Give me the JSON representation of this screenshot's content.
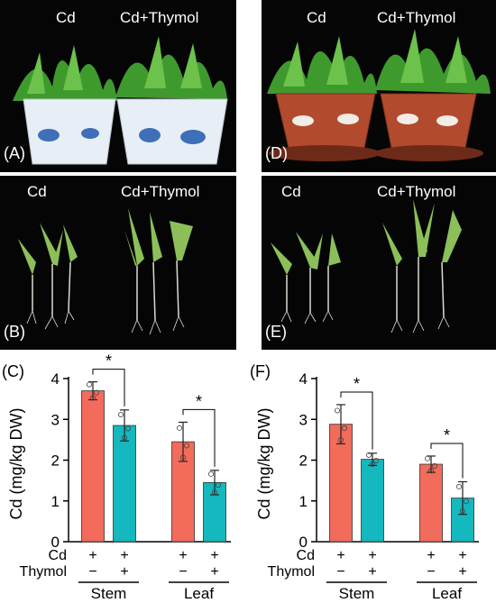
{
  "figure": {
    "panels": {
      "A": {
        "letter": "(A)",
        "left_label": "Cd",
        "right_label": "Cd+Thymol",
        "pot_color": "#e8eef5"
      },
      "B": {
        "letter": "(B)",
        "left_label": "Cd",
        "right_label": "Cd+Thymol"
      },
      "D": {
        "letter": "(D)",
        "left_label": "Cd",
        "right_label": "Cd+Thymol",
        "pot_color": "#b24a2e"
      },
      "E": {
        "letter": "(E)",
        "left_label": "Cd",
        "right_label": "Cd+Thymol"
      }
    }
  },
  "chart_data": [
    {
      "panel": "(C)",
      "type": "bar",
      "ylabel": "Cd (mg/kg DW)",
      "ylim": [
        0,
        4
      ],
      "yticks": [
        "0",
        "1",
        "2",
        "3",
        "4"
      ],
      "groups": [
        "Stem",
        "Leaf"
      ],
      "row_labels": [
        "Cd",
        "Thymol"
      ],
      "bar_signs": [
        [
          "+",
          "−"
        ],
        [
          "+",
          "+"
        ],
        [
          "+",
          "−"
        ],
        [
          "+",
          "+"
        ]
      ],
      "values": [
        3.7,
        2.85,
        2.45,
        1.45
      ],
      "errors": [
        0.22,
        0.38,
        0.48,
        0.3
      ],
      "colors": [
        "#f26b5b",
        "#14b8be",
        "#f26b5b",
        "#14b8be"
      ],
      "significance": [
        "*",
        "*"
      ]
    },
    {
      "panel": "(F)",
      "type": "bar",
      "ylabel": "Cd (mg/kg DW)",
      "ylim": [
        0,
        4
      ],
      "yticks": [
        "0",
        "1",
        "2",
        "3",
        "4"
      ],
      "groups": [
        "Stem",
        "Leaf"
      ],
      "row_labels": [
        "Cd",
        "Thymol"
      ],
      "bar_signs": [
        [
          "+",
          "−"
        ],
        [
          "+",
          "+"
        ],
        [
          "+",
          "−"
        ],
        [
          "+",
          "+"
        ]
      ],
      "values": [
        2.88,
        2.02,
        1.9,
        1.07
      ],
      "errors": [
        0.48,
        0.15,
        0.2,
        0.4
      ],
      "colors": [
        "#f26b5b",
        "#14b8be",
        "#f26b5b",
        "#14b8be"
      ],
      "significance": [
        "*",
        "*"
      ]
    }
  ]
}
